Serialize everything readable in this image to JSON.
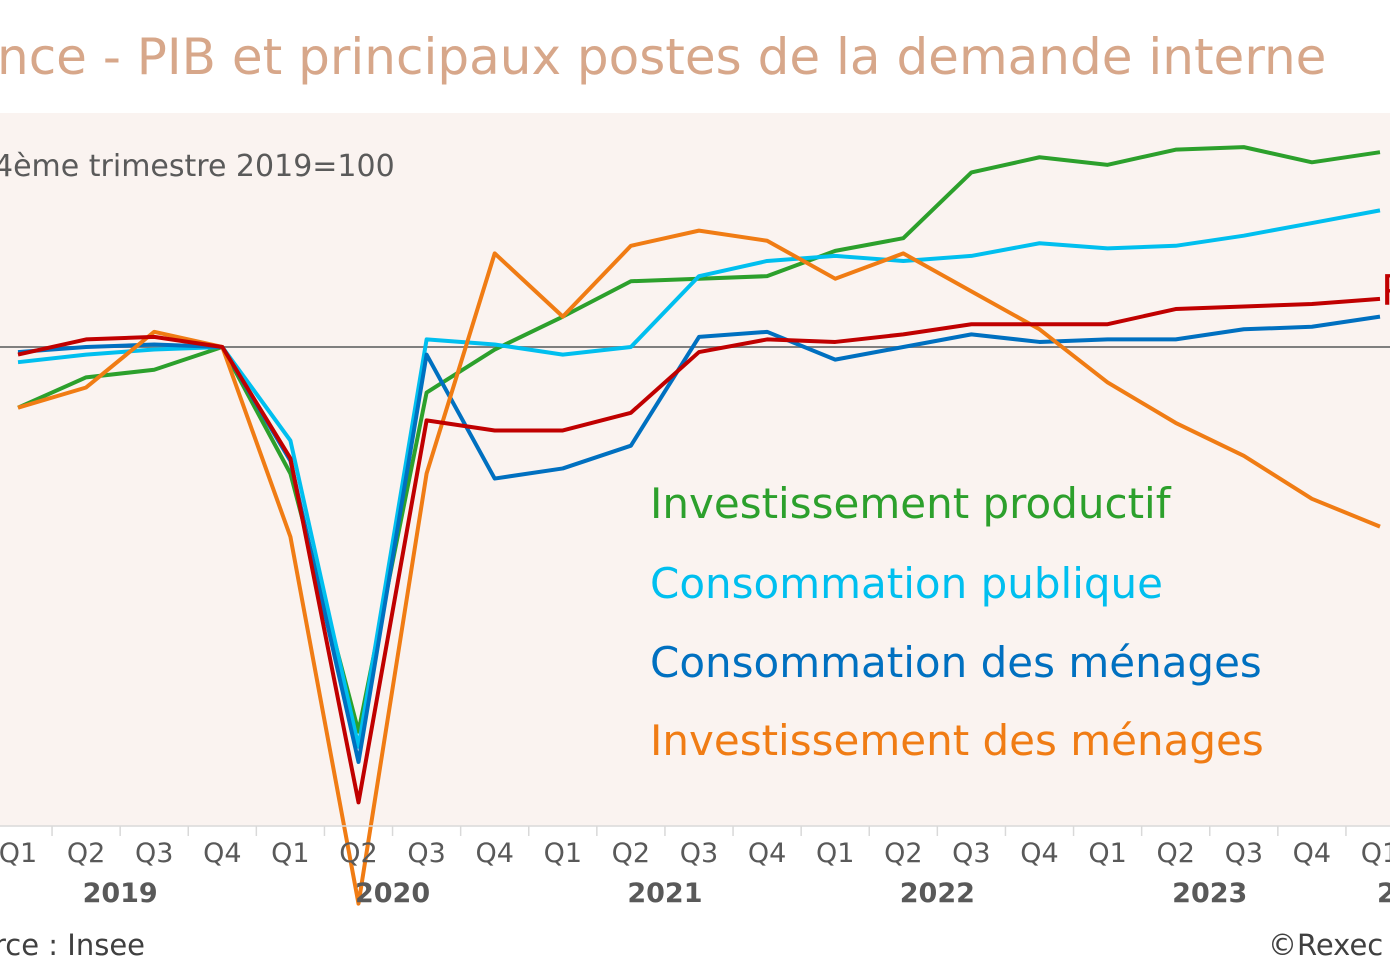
{
  "colors": {
    "background": "#FFFFFF",
    "plot_background": "#FAF3F0",
    "title": "#D7A78A",
    "baseline": "#7F7F7F",
    "text": "#595959"
  },
  "chart_data": {
    "type": "line",
    "title": "nce - PIB et principaux postes de la demande interne",
    "subtitle": "4ème trimestre 2019=100",
    "source": "rce : Insee",
    "credit": "©Rexec",
    "baseline": 100,
    "ylim": [
      77,
      109
    ],
    "grid": false,
    "quarters": [
      "Q1",
      "Q2",
      "Q3",
      "Q4",
      "Q1",
      "Q2",
      "Q3",
      "Q4",
      "Q1",
      "Q2",
      "Q3",
      "Q4",
      "Q1",
      "Q2",
      "Q3",
      "Q4",
      "Q1",
      "Q2",
      "Q3",
      "Q4",
      "Q1"
    ],
    "years": [
      {
        "label": "2019",
        "from": 0,
        "to": 3
      },
      {
        "label": "2020",
        "from": 4,
        "to": 7
      },
      {
        "label": "2021",
        "from": 8,
        "to": 11
      },
      {
        "label": "2022",
        "from": 12,
        "to": 15
      },
      {
        "label": "2023",
        "from": 16,
        "to": 19
      },
      {
        "label": "2",
        "from": 20,
        "to": 20
      }
    ],
    "series": [
      {
        "name": "Investissement productif",
        "color": "#2CA02C",
        "values": [
          97.6,
          98.8,
          99.1,
          100.0,
          95.0,
          84.8,
          98.2,
          99.9,
          101.2,
          102.6,
          102.7,
          102.8,
          103.8,
          104.3,
          106.9,
          107.5,
          107.2,
          107.8,
          107.9,
          107.3,
          107.7
        ]
      },
      {
        "name": "Consommation publique",
        "color": "#00BFEF",
        "values": [
          99.4,
          99.7,
          99.9,
          100.0,
          96.3,
          84.2,
          100.3,
          100.1,
          99.7,
          100.0,
          102.8,
          103.4,
          103.6,
          103.4,
          103.6,
          104.1,
          103.9,
          104.0,
          104.4,
          104.9,
          105.4
        ]
      },
      {
        "name": "Consommation des ménages",
        "color": "#0070C0",
        "values": [
          99.8,
          100.0,
          100.1,
          100.0,
          95.5,
          83.6,
          99.7,
          94.8,
          95.2,
          96.1,
          100.4,
          100.6,
          99.5,
          100.0,
          100.5,
          100.2,
          100.3,
          100.3,
          100.7,
          100.8,
          101.2
        ]
      },
      {
        "name": "Investissement des ménages",
        "color": "#F07C14",
        "values": [
          97.6,
          98.4,
          100.6,
          100.0,
          92.5,
          78.0,
          95.0,
          103.7,
          101.2,
          104.0,
          104.6,
          104.2,
          102.7,
          103.7,
          102.2,
          100.7,
          98.6,
          97.0,
          95.7,
          94.0,
          92.9
        ]
      },
      {
        "name": "PIB",
        "color": "#C00000",
        "values": [
          99.7,
          100.3,
          100.4,
          100.0,
          95.6,
          82.0,
          97.1,
          96.7,
          96.7,
          97.4,
          99.8,
          100.3,
          100.2,
          100.5,
          100.9,
          100.9,
          100.9,
          101.5,
          101.6,
          101.7,
          101.9
        ]
      }
    ],
    "legend": [
      {
        "label": "Investissement productif",
        "color": "#2CA02C"
      },
      {
        "label": "Consommation publique",
        "color": "#00BFEF"
      },
      {
        "label": "Consommation des ménages",
        "color": "#0070C0"
      },
      {
        "label": "Investissement des ménages",
        "color": "#F07C14"
      }
    ],
    "pib_tag": "P"
  }
}
